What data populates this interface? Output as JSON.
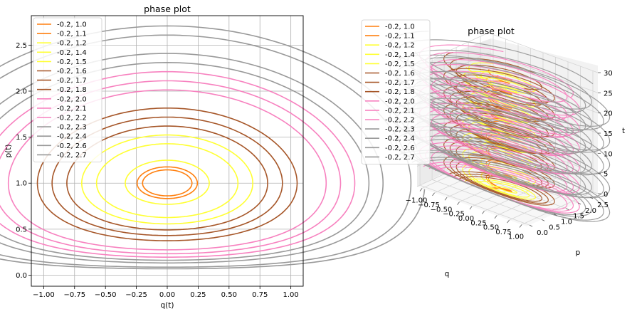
{
  "chart_data": [
    {
      "type": "line",
      "title": "phase plot",
      "xlabel": "q(t)",
      "ylabel": "p(t)",
      "xlim": [
        -1.1,
        1.1
      ],
      "ylim": [
        -0.12,
        2.82
      ],
      "xticks": [
        "−1.00",
        "−0.75",
        "−0.50",
        "−0.25",
        "0.00",
        "0.25",
        "0.50",
        "0.75",
        "1.00"
      ],
      "xtick_values": [
        -1.0,
        -0.75,
        -0.5,
        -0.25,
        0.0,
        0.25,
        0.5,
        0.75,
        1.0
      ],
      "yticks": [
        "0.0",
        "0.5",
        "1.0",
        "1.5",
        "2.0",
        "2.5"
      ],
      "ytick_values": [
        0.0,
        0.5,
        1.0,
        1.5,
        2.0,
        2.5
      ],
      "grid": true,
      "legend_position": "top-left",
      "series": [
        {
          "name": "-0.2, 1.0",
          "q0": -0.2,
          "p0": 1.0,
          "color": "#ff7f0e"
        },
        {
          "name": "-0.2, 1.1",
          "q0": -0.2,
          "p0": 1.1,
          "color": "#ff7f0e"
        },
        {
          "name": "-0.2, 1.2",
          "q0": -0.2,
          "p0": 1.2,
          "color": "#ffff33"
        },
        {
          "name": "-0.2, 1.4",
          "q0": -0.2,
          "p0": 1.4,
          "color": "#ffff33"
        },
        {
          "name": "-0.2, 1.5",
          "q0": -0.2,
          "p0": 1.5,
          "color": "#ffff33"
        },
        {
          "name": "-0.2, 1.6",
          "q0": -0.2,
          "p0": 1.6,
          "color": "#a65628"
        },
        {
          "name": "-0.2, 1.7",
          "q0": -0.2,
          "p0": 1.7,
          "color": "#a65628"
        },
        {
          "name": "-0.2, 1.8",
          "q0": -0.2,
          "p0": 1.8,
          "color": "#a65628"
        },
        {
          "name": "-0.2, 2.0",
          "q0": -0.2,
          "p0": 2.0,
          "color": "#f781bf"
        },
        {
          "name": "-0.2, 2.1",
          "q0": -0.2,
          "p0": 2.1,
          "color": "#f781bf"
        },
        {
          "name": "-0.2, 2.2",
          "q0": -0.2,
          "p0": 2.2,
          "color": "#f781bf"
        },
        {
          "name": "-0.2, 2.3",
          "q0": -0.2,
          "p0": 2.3,
          "color": "#999999"
        },
        {
          "name": "-0.2, 2.4",
          "q0": -0.2,
          "p0": 2.4,
          "color": "#999999"
        },
        {
          "name": "-0.2, 2.6",
          "q0": -0.2,
          "p0": 2.6,
          "color": "#999999"
        },
        {
          "name": "-0.2, 2.7",
          "q0": -0.2,
          "p0": 2.7,
          "color": "#999999"
        }
      ]
    },
    {
      "type": "line",
      "projection": "3d",
      "title": "phase plot",
      "xlabel": "q",
      "ylabel": "p",
      "zlabel": "t",
      "xlim": [
        -1.1,
        1.1
      ],
      "ylim": [
        -0.12,
        2.82
      ],
      "zlim": [
        0,
        30
      ],
      "xticks": [
        "−1.00",
        "−0.75",
        "−0.50",
        "−0.25",
        "0.00",
        "0.25",
        "0.50",
        "0.75",
        "1.00"
      ],
      "xtick_values": [
        -1.0,
        -0.75,
        -0.5,
        -0.25,
        0.0,
        0.25,
        0.5,
        0.75,
        1.0
      ],
      "yticks": [
        "0.0",
        "0.5",
        "1.0",
        "1.5",
        "2.0",
        "2.5"
      ],
      "ytick_values": [
        0.0,
        0.5,
        1.0,
        1.5,
        2.0,
        2.5
      ],
      "zticks": [
        "0",
        "5",
        "10",
        "15",
        "20",
        "25",
        "30"
      ],
      "ztick_values": [
        0,
        5,
        10,
        15,
        20,
        25,
        30
      ],
      "grid": true,
      "legend_position": "top-left",
      "uses_series_of_first_chart": true
    }
  ]
}
